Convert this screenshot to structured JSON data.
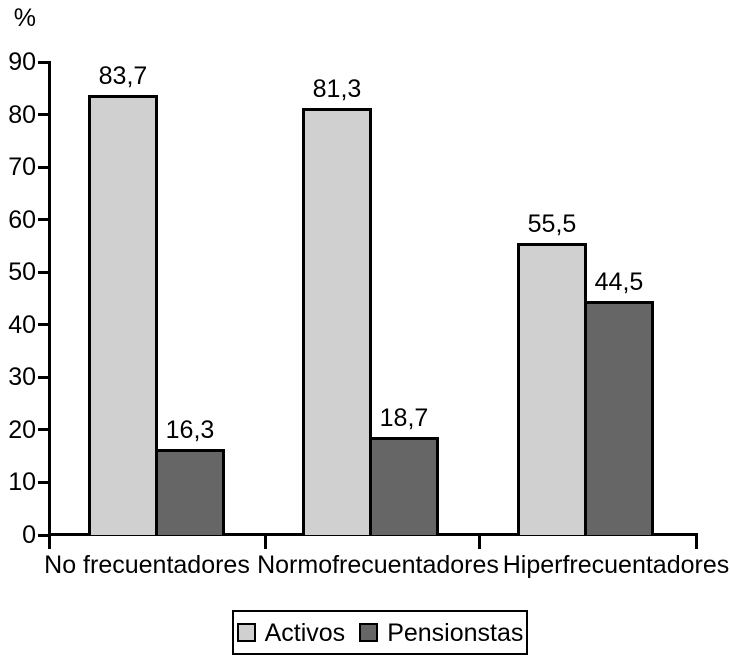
{
  "chart_data": {
    "type": "bar",
    "title": "",
    "xlabel": "",
    "ylabel": "%",
    "categories": [
      "No frecuentadores",
      "Normofrecuentadores",
      "Hiperfrecuentadores"
    ],
    "series": [
      {
        "name": "Activos",
        "values": [
          83.7,
          81.3,
          55.5
        ],
        "value_labels": [
          "83,7",
          "81,3",
          "55,5"
        ],
        "color": "#d0d0d0"
      },
      {
        "name": "Pensionstas",
        "values": [
          16.3,
          18.7,
          44.5
        ],
        "value_labels": [
          "16,3",
          "18,7",
          "44,5"
        ],
        "color": "#666666"
      }
    ],
    "ylim": [
      0,
      90
    ],
    "yticks": [
      0,
      10,
      20,
      30,
      40,
      50,
      60,
      70,
      80,
      90
    ],
    "decimal_separator": ",",
    "grid": false,
    "legend_position": "bottom",
    "bar_border_color": "#000000",
    "axis_color": "#000000",
    "background_color": "#ffffff"
  }
}
